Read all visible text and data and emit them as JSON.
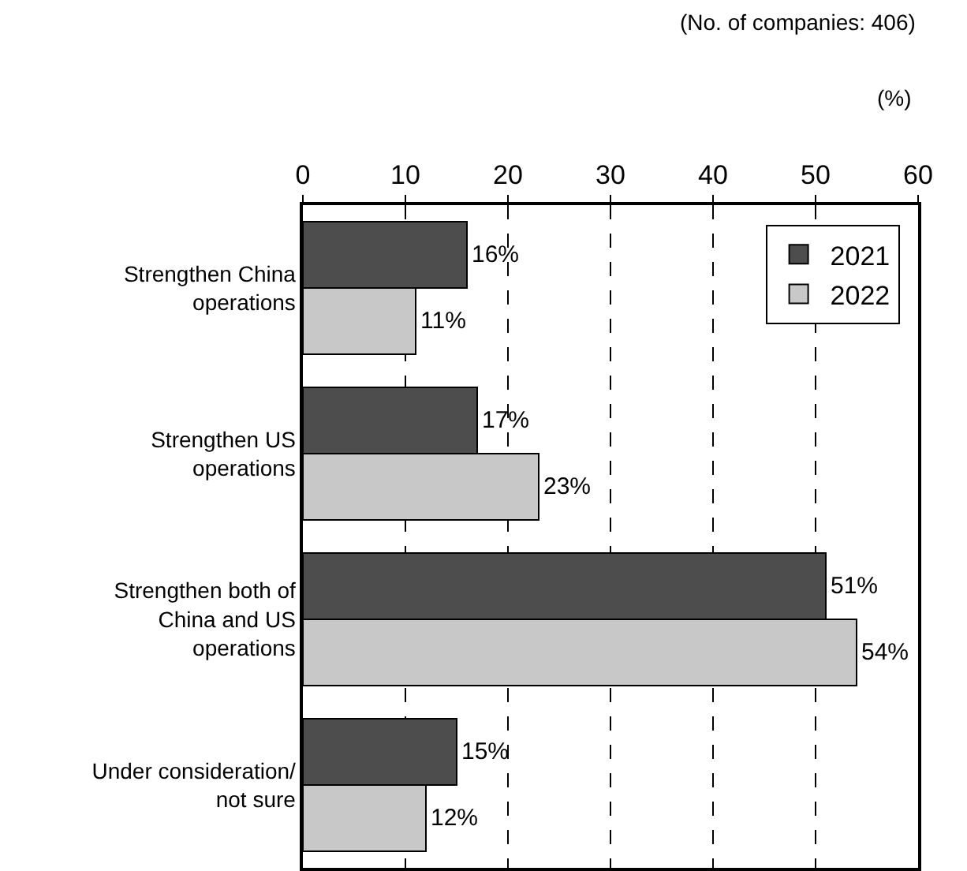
{
  "chart_data": {
    "type": "bar",
    "orientation": "horizontal",
    "categories": [
      "Strengthen China\noperations",
      "Strengthen US\noperations",
      "Strengthen both of\nChina and US\noperations",
      "Under consideration/\nnot sure"
    ],
    "series": [
      {
        "name": "2021",
        "color": "#4d4d4d",
        "values": [
          16,
          17,
          51,
          15
        ],
        "value_labels": [
          "16%",
          "17%",
          "51%",
          "15%"
        ]
      },
      {
        "name": "2022",
        "color": "#c8c8c8",
        "values": [
          11,
          23,
          54,
          12
        ],
        "value_labels": [
          "11%",
          "23%",
          "54%",
          "12%"
        ]
      }
    ],
    "xlim": [
      0,
      60
    ],
    "xticks": [
      0,
      10,
      20,
      30,
      40,
      50,
      60
    ],
    "grid": "x",
    "legend": "top right",
    "annotations": [
      "(No. of companies: 406)",
      "(%)"
    ]
  }
}
